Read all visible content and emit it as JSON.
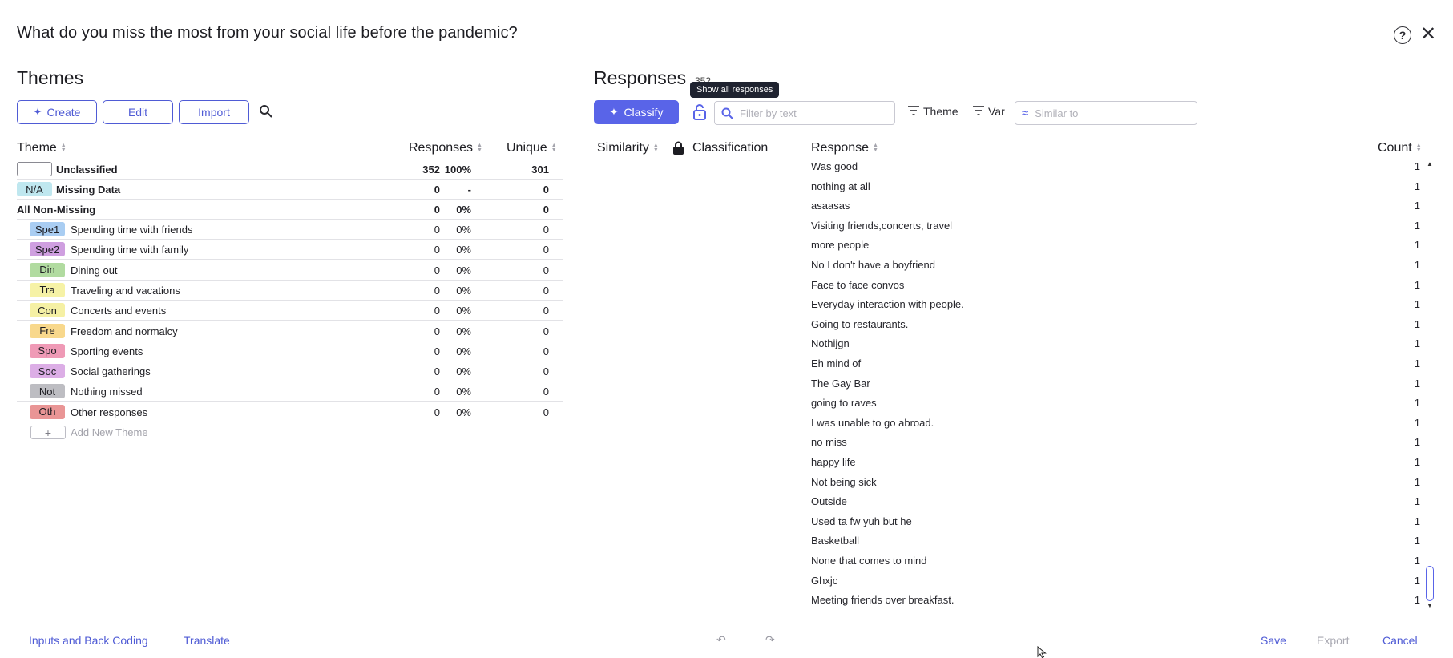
{
  "dialog": {
    "title": "What do you miss the most from your social life before the pandemic?",
    "help_glyph": "?",
    "close_glyph": "✕"
  },
  "themes": {
    "title": "Themes",
    "buttons": {
      "create": "Create",
      "edit": "Edit",
      "import": "Import"
    },
    "columns": {
      "theme": "Theme",
      "responses": "Responses",
      "unique": "Unique"
    },
    "summary_rows": [
      {
        "code": "",
        "name": "Unclassified",
        "count": "352",
        "pct": "100%",
        "unique": "301"
      },
      {
        "code": "N/A",
        "name": "Missing Data",
        "count": "0",
        "pct": "-",
        "unique": "0"
      },
      {
        "code": "",
        "name": "All Non-Missing",
        "count": "0",
        "pct": "0%",
        "unique": "0"
      }
    ],
    "items": [
      {
        "code": "Spe1",
        "name": "Spending time with friends",
        "count": "0",
        "pct": "0%",
        "unique": "0",
        "color": "#a9cdf2"
      },
      {
        "code": "Spe2",
        "name": "Spending time with family",
        "count": "0",
        "pct": "0%",
        "unique": "0",
        "color": "#cf9fe0"
      },
      {
        "code": "Din",
        "name": "Dining out",
        "count": "0",
        "pct": "0%",
        "unique": "0",
        "color": "#b1dba0"
      },
      {
        "code": "Tra",
        "name": "Traveling and vacations",
        "count": "0",
        "pct": "0%",
        "unique": "0",
        "color": "#f6f2a6"
      },
      {
        "code": "Con",
        "name": "Concerts and events",
        "count": "0",
        "pct": "0%",
        "unique": "0",
        "color": "#f5f0a4"
      },
      {
        "code": "Fre",
        "name": "Freedom and normalcy",
        "count": "0",
        "pct": "0%",
        "unique": "0",
        "color": "#f8d88c"
      },
      {
        "code": "Spo",
        "name": "Sporting events",
        "count": "0",
        "pct": "0%",
        "unique": "0",
        "color": "#ef9ab6"
      },
      {
        "code": "Soc",
        "name": "Social gatherings",
        "count": "0",
        "pct": "0%",
        "unique": "0",
        "color": "#dcaee6"
      },
      {
        "code": "Not",
        "name": "Nothing missed",
        "count": "0",
        "pct": "0%",
        "unique": "0",
        "color": "#bdbdc2"
      },
      {
        "code": "Oth",
        "name": "Other responses",
        "count": "0",
        "pct": "0%",
        "unique": "0",
        "color": "#e99595"
      }
    ],
    "add_new": {
      "plus": "+",
      "label": "Add New Theme"
    }
  },
  "responses": {
    "title": "Responses",
    "count": "352",
    "tooltip": "Show all responses",
    "classify_label": "Classify",
    "filter_placeholder": "Filter by text",
    "theme_filter": "Theme",
    "var_filter": "Var",
    "similar_placeholder": "Similar to",
    "columns": {
      "similarity": "Similarity",
      "classification": "Classification",
      "response": "Response",
      "count": "Count"
    },
    "rows": [
      {
        "text": "Was good",
        "count": "1"
      },
      {
        "text": "nothing at all",
        "count": "1"
      },
      {
        "text": "asaasas",
        "count": "1"
      },
      {
        "text": "Visiting friends,concerts, travel",
        "count": "1"
      },
      {
        "text": "more people",
        "count": "1"
      },
      {
        "text": "No I don't have a boyfriend",
        "count": "1"
      },
      {
        "text": "Face to face convos",
        "count": "1"
      },
      {
        "text": "Everyday interaction with people.",
        "count": "1"
      },
      {
        "text": "Going to restaurants.",
        "count": "1"
      },
      {
        "text": "Nothijgn",
        "count": "1"
      },
      {
        "text": "Eh mind of",
        "count": "1"
      },
      {
        "text": "The Gay Bar",
        "count": "1"
      },
      {
        "text": "going to raves",
        "count": "1"
      },
      {
        "text": "I was unable to go abroad.",
        "count": "1"
      },
      {
        "text": "no miss",
        "count": "1"
      },
      {
        "text": "happy life",
        "count": "1"
      },
      {
        "text": "Not being sick",
        "count": "1"
      },
      {
        "text": "Outside",
        "count": "1"
      },
      {
        "text": "Used ta fw yuh but he",
        "count": "1"
      },
      {
        "text": "Basketball",
        "count": "1"
      },
      {
        "text": "None that comes to mind",
        "count": "1"
      },
      {
        "text": "Ghxjc",
        "count": "1"
      },
      {
        "text": "Meeting friends over breakfast.",
        "count": "1"
      }
    ]
  },
  "footer": {
    "inputs_back_coding": "Inputs and Back Coding",
    "translate": "Translate",
    "undo_glyph": "↶",
    "redo_glyph": "↷",
    "save": "Save",
    "export": "Export",
    "cancel": "Cancel"
  },
  "colors": {
    "accent": "#5964e8",
    "accent_text": "#4f5bd5",
    "na_badge": "#bfe7ef"
  }
}
